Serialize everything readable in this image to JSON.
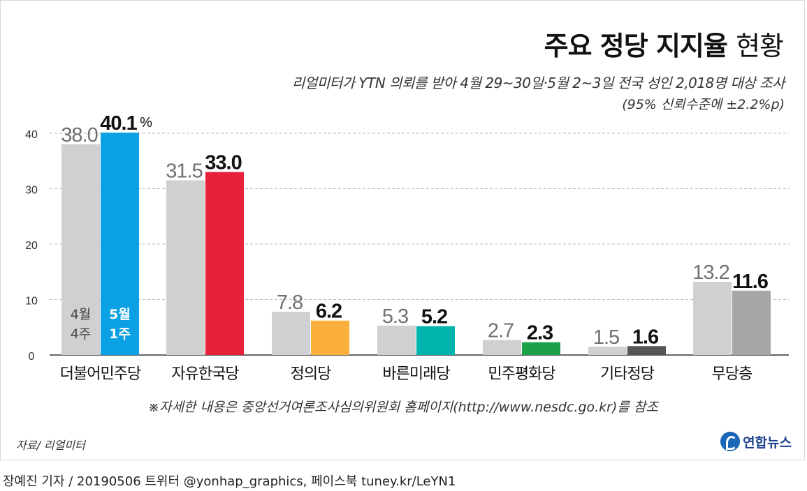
{
  "header": {
    "title_bold": "주요 정당 지지율",
    "title_light": "현황",
    "subtitle": "리얼미터가 YTN 의뢰를 받아 4월 29~30일·5월 2~3일 전국 성인 2,018명 대상 조사",
    "note": "(95% 신뢰수준에 ±2.2%p)"
  },
  "chart_data": {
    "type": "bar",
    "categories": [
      "더불어민주당",
      "자유한국당",
      "정의당",
      "바른미래당",
      "민주평화당",
      "기타정당",
      "무당층"
    ],
    "series": [
      {
        "name": "4월 4주",
        "values": [
          38.0,
          31.5,
          7.8,
          5.3,
          2.7,
          1.5,
          13.2
        ],
        "color": "#cfd0d2"
      },
      {
        "name": "5월 1주",
        "values": [
          40.1,
          33.0,
          6.2,
          5.2,
          2.3,
          1.6,
          11.6
        ],
        "colors": [
          "#0aa0e3",
          "#e8213a",
          "#fbb03b",
          "#00b3ad",
          "#1aa14a",
          "#555555",
          "#a5a6a8"
        ]
      }
    ],
    "value_labels_prev": [
      "38.0",
      "31.5",
      "7.8",
      "5.3",
      "2.7",
      "1.5",
      "13.2"
    ],
    "value_labels_curr": [
      "40.1",
      "33.0",
      "6.2",
      "5.2",
      "2.3",
      "1.6",
      "11.6"
    ],
    "unit_suffix": "%",
    "yticks": [
      "0",
      "10",
      "20",
      "30",
      "40"
    ],
    "ylim": [
      0,
      40
    ],
    "grid": true,
    "legend_prev": [
      "4월",
      "4주"
    ],
    "legend_curr": [
      "5월",
      "1주"
    ],
    "colors": {
      "prev_label": "#707070",
      "curr_label": "#111111",
      "grid": "#bbbbbb",
      "axis": "#333333"
    }
  },
  "footnote": "※자세한 내용은 중앙선거여론조사심의위원회 홈페이지(http://www.nesdc.go.kr)를 참조",
  "source": "자료/ 리얼미터",
  "logo": {
    "text": "연합뉴스",
    "icon": "yonhap-logo-icon"
  },
  "credit": "장예진 기자 / 20190506 트위터 @yonhap_graphics, 페이스북 tuney.kr/LeYN1"
}
